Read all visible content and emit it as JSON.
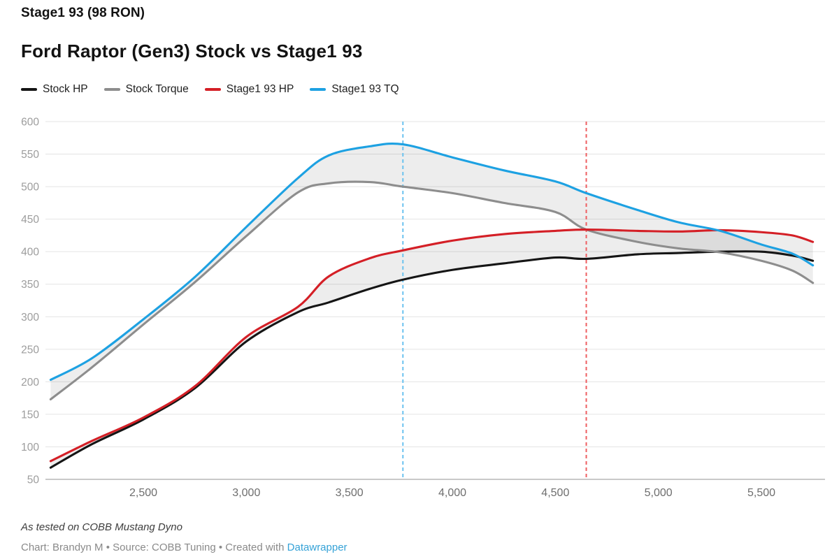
{
  "header": {
    "kicker": "Stage1 93 (98 RON)"
  },
  "title": "Ford Raptor (Gen3) Stock vs Stage1 93",
  "legend": [
    {
      "label": "Stock HP",
      "color": "#151515"
    },
    {
      "label": "Stock Torque",
      "color": "#8d8d8d"
    },
    {
      "label": "Stage1 93 HP",
      "color": "#d41f26"
    },
    {
      "label": "Stage1 93 TQ",
      "color": "#1da1e2"
    }
  ],
  "footer": {
    "note": "As tested on COBB Mustang Dyno",
    "byline_prefix": "Chart: Brandyn M • Source: COBB Tuning • Created with ",
    "byline_link": "Datawrapper",
    "link_color": "#35a2d7"
  },
  "chart_data": {
    "type": "line",
    "x": [
      2050,
      2250,
      2500,
      2750,
      3000,
      3250,
      3400,
      3600,
      3760,
      4000,
      4250,
      4500,
      4650,
      4900,
      5100,
      5300,
      5500,
      5650,
      5750
    ],
    "series": [
      {
        "name": "Stock HP",
        "color": "#151515",
        "values": [
          68,
          104,
          142,
          190,
          262,
          307,
          322,
          343,
          357,
          372,
          382,
          391,
          389,
          396,
          398,
          400,
          400,
          394,
          386
        ]
      },
      {
        "name": "Stock Torque",
        "color": "#8d8d8d",
        "values": [
          173,
          222,
          288,
          353,
          424,
          491,
          505,
          507,
          500,
          490,
          475,
          461,
          434,
          415,
          405,
          399,
          386,
          371,
          352
        ]
      },
      {
        "name": "Stage1 93 HP",
        "color": "#d41f26",
        "values": [
          78,
          109,
          145,
          193,
          269,
          315,
          362,
          390,
          402,
          417,
          427,
          432,
          434,
          432,
          431,
          433,
          430,
          425,
          415
        ]
      },
      {
        "name": "Stage1 93 TQ",
        "color": "#1da1e2",
        "values": [
          203,
          236,
          296,
          361,
          438,
          513,
          548,
          562,
          565,
          545,
          525,
          508,
          490,
          464,
          445,
          432,
          411,
          397,
          379
        ]
      }
    ],
    "bands": [
      {
        "top": "Stage1 93 TQ",
        "bottom": "Stock Torque"
      },
      {
        "top": "Stage1 93 HP",
        "bottom": "Stock HP"
      }
    ],
    "vlines": [
      {
        "x": 3760,
        "color": "#6bc2ef"
      },
      {
        "x": 4650,
        "color": "#ee5f62"
      }
    ],
    "xlim": [
      2050,
      5750
    ],
    "ylim": [
      50,
      600
    ],
    "y_ticks": [
      50,
      100,
      150,
      200,
      250,
      300,
      350,
      400,
      450,
      500,
      550,
      600
    ],
    "x_ticks": [
      2500,
      3000,
      3500,
      4000,
      4500,
      5000,
      5500
    ],
    "x_tick_labels": [
      "2,500",
      "3,000",
      "3,500",
      "4,000",
      "4,500",
      "5,000",
      "5,500"
    ],
    "grid": true,
    "legend_position": "top",
    "band_fill": "rgba(20,20,20,0.075)",
    "grid_color": "#e4e4e4",
    "axis_line_color": "#c9c9c9",
    "y_tick_color": "#9d9d9d",
    "x_tick_color": "#6e6e6e"
  }
}
